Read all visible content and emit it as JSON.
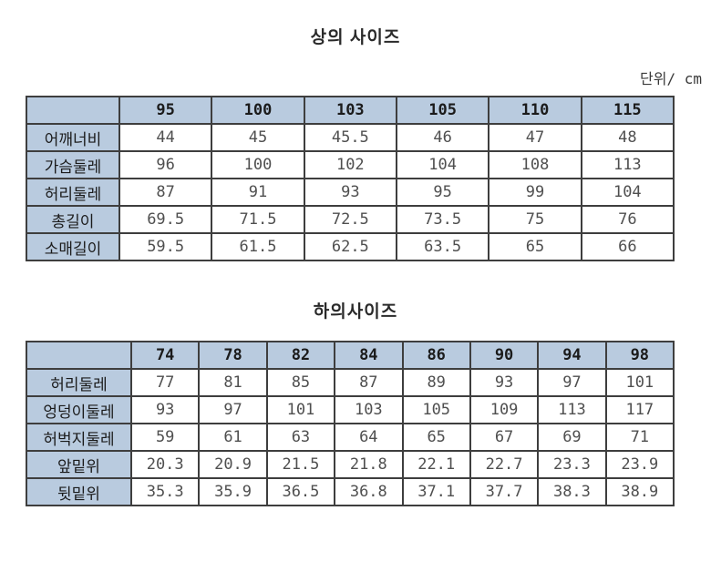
{
  "unit_label": "단위/ cm",
  "colors": {
    "header_bg": "#b9cbdf",
    "border": "#3e3e3e"
  },
  "chart_data": [
    {
      "type": "table",
      "title": "상의 사이즈",
      "columns": [
        "95",
        "100",
        "103",
        "105",
        "110",
        "115"
      ],
      "rows": [
        {
          "label": "어깨너비",
          "values": [
            "44",
            "45",
            "45.5",
            "46",
            "47",
            "48"
          ]
        },
        {
          "label": "가슴둘레",
          "values": [
            "96",
            "100",
            "102",
            "104",
            "108",
            "113"
          ]
        },
        {
          "label": "허리둘레",
          "values": [
            "87",
            "91",
            "93",
            "95",
            "99",
            "104"
          ]
        },
        {
          "label": "총길이",
          "values": [
            "69.5",
            "71.5",
            "72.5",
            "73.5",
            "75",
            "76"
          ]
        },
        {
          "label": "소매길이",
          "values": [
            "59.5",
            "61.5",
            "62.5",
            "63.5",
            "65",
            "66"
          ]
        }
      ]
    },
    {
      "type": "table",
      "title": "하의사이즈",
      "columns": [
        "74",
        "78",
        "82",
        "84",
        "86",
        "90",
        "94",
        "98"
      ],
      "rows": [
        {
          "label": "허리둘레",
          "values": [
            "77",
            "81",
            "85",
            "87",
            "89",
            "93",
            "97",
            "101"
          ]
        },
        {
          "label": "엉덩이둘레",
          "values": [
            "93",
            "97",
            "101",
            "103",
            "105",
            "109",
            "113",
            "117"
          ]
        },
        {
          "label": "허벅지둘레",
          "values": [
            "59",
            "61",
            "63",
            "64",
            "65",
            "67",
            "69",
            "71"
          ]
        },
        {
          "label": "앞밑위",
          "values": [
            "20.3",
            "20.9",
            "21.5",
            "21.8",
            "22.1",
            "22.7",
            "23.3",
            "23.9"
          ]
        },
        {
          "label": "뒷밑위",
          "values": [
            "35.3",
            "35.9",
            "36.5",
            "36.8",
            "37.1",
            "37.7",
            "38.3",
            "38.9"
          ]
        }
      ]
    }
  ]
}
